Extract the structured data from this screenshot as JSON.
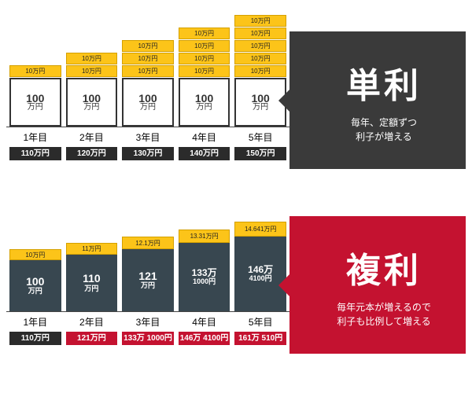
{
  "simple": {
    "title": "単利",
    "subtitle1": "毎年、定額ずつ",
    "subtitle2": "利子が増える",
    "title_bg": "#3a3a3a",
    "interest_label": "10万円",
    "base_value": "100",
    "base_unit": "万円",
    "interest_color": "#fcc419",
    "base_bg": "#ffffff",
    "years": [
      {
        "year": "1年目",
        "interest_count": 1,
        "total": "110万円"
      },
      {
        "year": "2年目",
        "interest_count": 2,
        "total": "120万円"
      },
      {
        "year": "3年目",
        "interest_count": 3,
        "total": "130万円"
      },
      {
        "year": "4年目",
        "interest_count": 4,
        "total": "140万円"
      },
      {
        "year": "5年目",
        "interest_count": 5,
        "total": "150万円"
      }
    ],
    "total_bg": "#2b2b2b"
  },
  "compound": {
    "title": "複利",
    "subtitle1": "毎年元本が増えるので",
    "subtitle2": "利子も比例して増える",
    "title_bg": "#c41230",
    "interest_color": "#fcc419",
    "base_bg": "#384750",
    "years": [
      {
        "year": "1年目",
        "interest": "10万円",
        "int_h": 14,
        "base_line1": "100",
        "base_line2": "万円",
        "base_h": 65,
        "total": "110万円",
        "tot_class": "dark"
      },
      {
        "year": "2年目",
        "interest": "11万円",
        "int_h": 15,
        "base_line1": "110",
        "base_line2": "万円",
        "base_h": 72,
        "total": "121万円",
        "tot_class": "red"
      },
      {
        "year": "3年目",
        "interest": "12.1万円",
        "int_h": 16,
        "base_line1": "121",
        "base_line2": "万円",
        "base_h": 79,
        "total": "133万 1000円",
        "tot_class": "red"
      },
      {
        "year": "4年目",
        "interest": "13.31万円",
        "int_h": 17,
        "base_line1": "133万",
        "base_line2": "1000円",
        "base_h": 87,
        "total": "146万 4100円",
        "tot_class": "red"
      },
      {
        "year": "5年目",
        "interest": "14.641万円",
        "int_h": 19,
        "base_line1": "146万",
        "base_line2": "4100円",
        "base_h": 95,
        "total": "161万 510円",
        "tot_class": "red"
      }
    ]
  }
}
